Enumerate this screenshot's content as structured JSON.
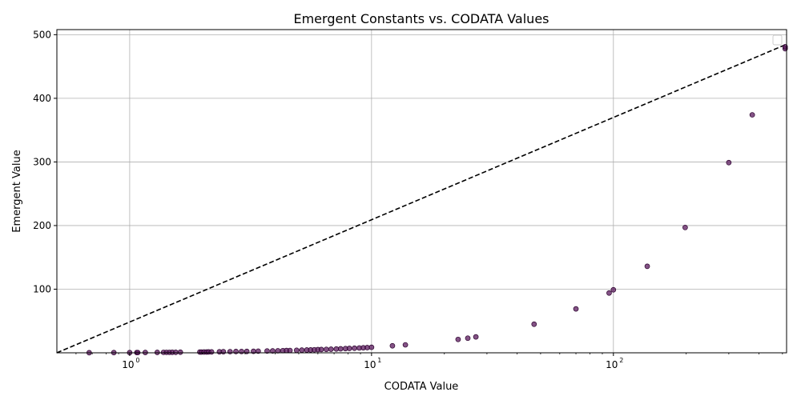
{
  "chart_data": {
    "type": "scatter",
    "title": "Emergent Constants vs. CODATA Values",
    "xlabel": "CODATA Value",
    "ylabel": "Emergent Value",
    "xscale": "log",
    "xlim": [
      0.5,
      520
    ],
    "ylim": [
      0,
      508
    ],
    "x_ticks": [
      1,
      10,
      100
    ],
    "x_tick_labels": [
      "10",
      "10",
      "10"
    ],
    "x_tick_exponents": [
      "0",
      "1",
      "2"
    ],
    "y_ticks": [
      100,
      200,
      300,
      400,
      500
    ],
    "y_tick_labels": [
      "100",
      "200",
      "300",
      "400",
      "500"
    ],
    "grid": true,
    "legend": "top-right",
    "colors": {
      "point_fill": "#5b1a5e",
      "point_edge": "#2a002c",
      "reference_line": "#000000",
      "grid": "#b0b0b0"
    },
    "reference_line": {
      "style": "dashed",
      "points": [
        [
          0.5,
          0
        ],
        [
          520,
          485
        ]
      ]
    },
    "points": [
      [
        0.68,
        0.2
      ],
      [
        0.86,
        0.3
      ],
      [
        1.0,
        0.3
      ],
      [
        1.07,
        0.4
      ],
      [
        1.08,
        0.4
      ],
      [
        1.16,
        0.5
      ],
      [
        1.3,
        0.6
      ],
      [
        1.38,
        0.7
      ],
      [
        1.42,
        0.7
      ],
      [
        1.46,
        0.7
      ],
      [
        1.5,
        0.8
      ],
      [
        1.55,
        0.8
      ],
      [
        1.62,
        0.9
      ],
      [
        1.95,
        1.2
      ],
      [
        1.98,
        1.2
      ],
      [
        2.03,
        1.3
      ],
      [
        2.08,
        1.3
      ],
      [
        2.12,
        1.4
      ],
      [
        2.18,
        1.4
      ],
      [
        2.35,
        1.6
      ],
      [
        2.44,
        1.7
      ],
      [
        2.6,
        1.8
      ],
      [
        2.75,
        2.0
      ],
      [
        2.9,
        2.1
      ],
      [
        3.05,
        2.2
      ],
      [
        3.25,
        2.4
      ],
      [
        3.4,
        2.6
      ],
      [
        3.7,
        2.9
      ],
      [
        3.9,
        3.0
      ],
      [
        4.1,
        3.2
      ],
      [
        4.3,
        3.4
      ],
      [
        4.45,
        3.6
      ],
      [
        4.6,
        3.7
      ],
      [
        4.9,
        4.0
      ],
      [
        5.15,
        4.2
      ],
      [
        5.4,
        4.4
      ],
      [
        5.6,
        4.6
      ],
      [
        5.8,
        4.8
      ],
      [
        6.0,
        5.0
      ],
      [
        6.2,
        5.2
      ],
      [
        6.5,
        5.4
      ],
      [
        6.8,
        5.7
      ],
      [
        7.15,
        6.0
      ],
      [
        7.45,
        6.3
      ],
      [
        7.8,
        6.6
      ],
      [
        8.1,
        6.9
      ],
      [
        8.5,
        7.2
      ],
      [
        8.9,
        7.6
      ],
      [
        9.25,
        7.9
      ],
      [
        9.6,
        8.2
      ],
      [
        10.0,
        8.6
      ],
      [
        12.2,
        11.0
      ],
      [
        13.8,
        12.5
      ],
      [
        22.8,
        21.0
      ],
      [
        25.0,
        23.0
      ],
      [
        27.0,
        25.0
      ],
      [
        47.0,
        45.0
      ],
      [
        70.0,
        69.0
      ],
      [
        96.0,
        94.0
      ],
      [
        100.0,
        99.0
      ],
      [
        138.0,
        136.0
      ],
      [
        198.0,
        197.0
      ],
      [
        300.0,
        299.0
      ],
      [
        375.0,
        374.0
      ],
      [
        513.0,
        478.0
      ],
      [
        513.0,
        481.0
      ]
    ]
  }
}
